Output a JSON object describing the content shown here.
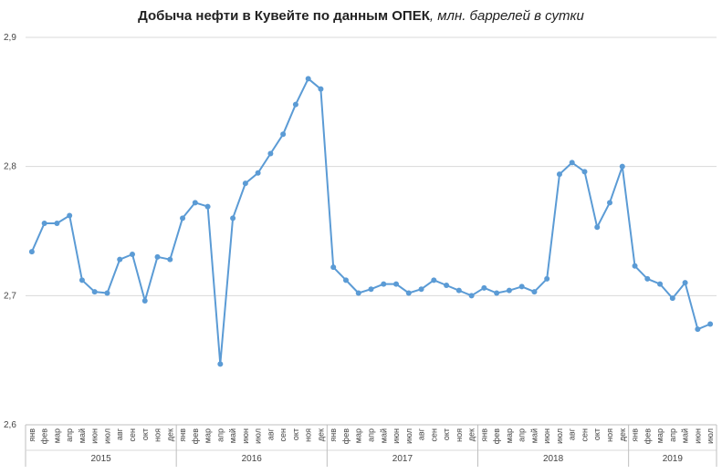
{
  "chart_data": {
    "type": "line",
    "title": "Добыча нефти в Кувейте по данным ОПЕК",
    "unit": "млн. баррелей в сутки",
    "ylim": [
      2.6,
      2.9
    ],
    "yticks": [
      "2,6",
      "2,7",
      "2,8",
      "2,9"
    ],
    "grid": true,
    "legend": "none",
    "color": "#5b9bd5",
    "groups": [
      {
        "year": "2015",
        "months": [
          "янв",
          "фев",
          "мар",
          "апр",
          "май",
          "июн",
          "июл",
          "авг",
          "сен",
          "окт",
          "ноя",
          "дек"
        ]
      },
      {
        "year": "2016",
        "months": [
          "янв",
          "фев",
          "мар",
          "апр",
          "май",
          "июн",
          "июл",
          "авг",
          "сен",
          "окт",
          "ноя",
          "дек"
        ]
      },
      {
        "year": "2017",
        "months": [
          "янв",
          "фев",
          "мар",
          "апр",
          "май",
          "июн",
          "июл",
          "авг",
          "сен",
          "окт",
          "ноя",
          "дек"
        ]
      },
      {
        "year": "2018",
        "months": [
          "янв",
          "фев",
          "мар",
          "апр",
          "май",
          "июн",
          "июл",
          "авг",
          "сен",
          "окт",
          "ноя",
          "дек"
        ]
      },
      {
        "year": "2019",
        "months": [
          "янв",
          "фев",
          "мар",
          "апр",
          "май",
          "июн",
          "июл"
        ]
      }
    ],
    "values": [
      2.734,
      2.756,
      2.756,
      2.762,
      2.712,
      2.703,
      2.702,
      2.728,
      2.732,
      2.696,
      2.73,
      2.728,
      2.76,
      2.772,
      2.769,
      2.647,
      2.76,
      2.787,
      2.795,
      2.81,
      2.825,
      2.848,
      2.868,
      2.86,
      2.722,
      2.712,
      2.702,
      2.705,
      2.709,
      2.709,
      2.702,
      2.705,
      2.712,
      2.708,
      2.704,
      2.7,
      2.706,
      2.702,
      2.704,
      2.707,
      2.703,
      2.713,
      2.794,
      2.803,
      2.796,
      2.753,
      2.772,
      2.8,
      2.723,
      2.713,
      2.709,
      2.698,
      2.71,
      2.674,
      2.678
    ]
  }
}
